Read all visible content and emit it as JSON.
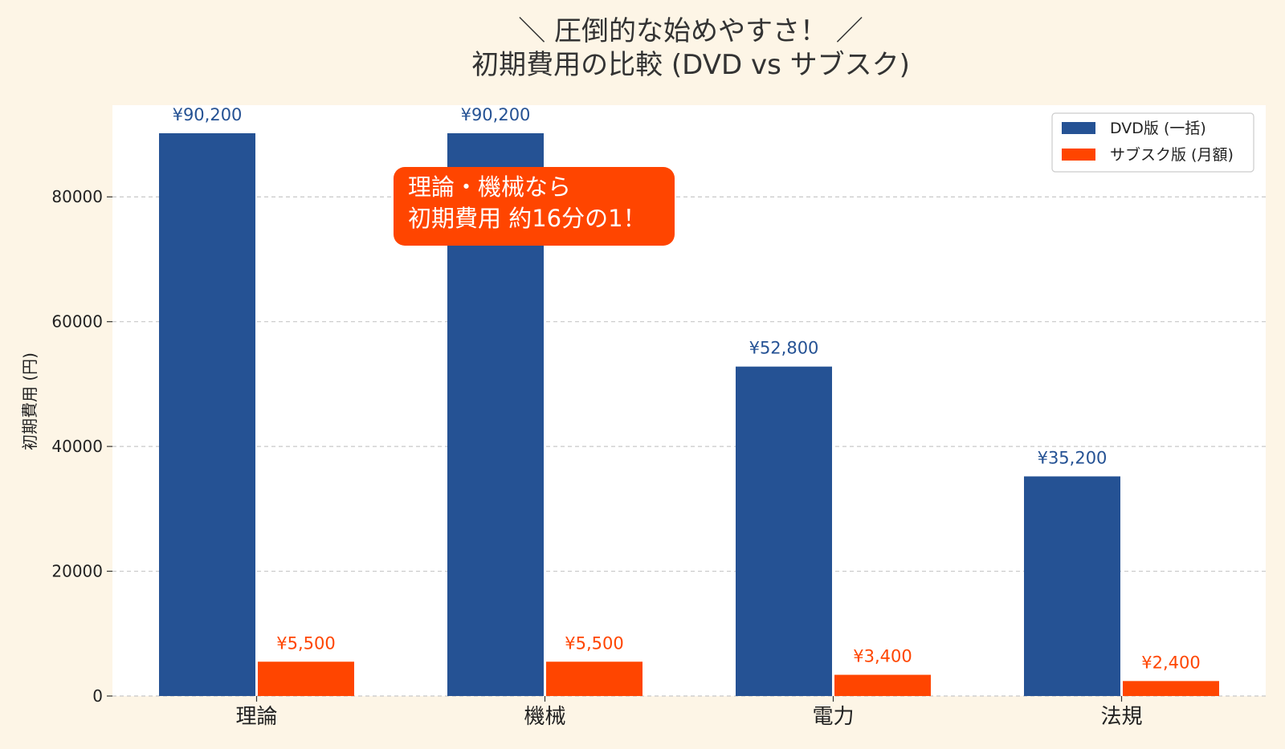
{
  "colors": {
    "background": "#fdf5e6",
    "plot_background": "#ffffff",
    "dvd": "#255294",
    "subscription": "#ff4500",
    "grid": "#c8c8c8",
    "callout": "#ff4500"
  },
  "chart_data": {
    "type": "bar",
    "title_lines": [
      "＼ 圧倒的な始めやすさ！ ／",
      "初期費用の比較 (DVD vs サブスク)"
    ],
    "xlabel": "",
    "ylabel": "初期費用 (円)",
    "categories": [
      "理論",
      "機械",
      "電力",
      "法規"
    ],
    "ylim": [
      0,
      94700
    ],
    "yticks": [
      0,
      20000,
      40000,
      60000,
      80000
    ],
    "grid": "horizontal dashed",
    "legend_position": "top-right",
    "series": [
      {
        "name": "DVD版 (一括)",
        "values": [
          90200,
          90200,
          52800,
          35200
        ],
        "labels": [
          "¥90,200",
          "¥90,200",
          "¥52,800",
          "¥35,200"
        ]
      },
      {
        "name": "サブスク版 (月額)",
        "values": [
          5500,
          5500,
          3400,
          2400
        ],
        "labels": [
          "¥5,500",
          "¥5,500",
          "¥3,400",
          "¥2,400"
        ]
      }
    ],
    "annotation": {
      "lines": [
        "理論・機械なら",
        "初期費用 約16分の1！"
      ]
    }
  }
}
